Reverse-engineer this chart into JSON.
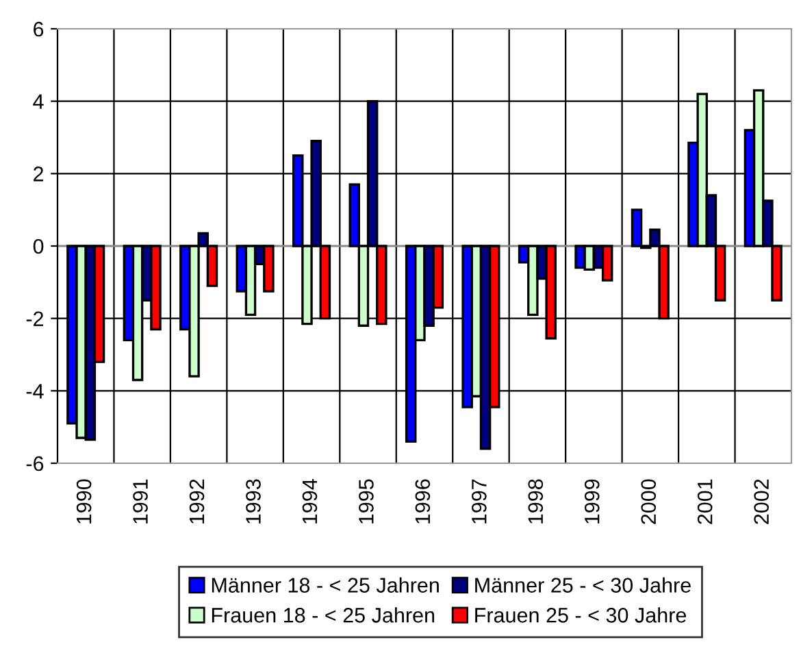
{
  "chart_data": {
    "type": "bar",
    "categories": [
      "1990",
      "1991",
      "1992",
      "1993",
      "1994",
      "1995",
      "1996",
      "1997",
      "1998",
      "1999",
      "2000",
      "2001",
      "2002"
    ],
    "series": [
      {
        "name": "Männer 18 - < 25 Jahren",
        "color": "#0000ff",
        "values": [
          -4.9,
          -2.6,
          -2.3,
          -1.25,
          2.5,
          1.7,
          -5.4,
          -4.45,
          -0.45,
          -0.6,
          1.0,
          2.85,
          3.2
        ]
      },
      {
        "name": "Frauen 18 - < 25 Jahren",
        "color": "#ccffcc",
        "values": [
          -5.3,
          -3.7,
          -3.6,
          -1.9,
          -2.15,
          -2.2,
          -2.6,
          -4.15,
          -1.9,
          -0.65,
          -0.05,
          4.2,
          4.3
        ]
      },
      {
        "name": "Männer 25 - < 30 Jahre",
        "color": "#000080",
        "values": [
          -5.35,
          -1.5,
          0.35,
          -0.5,
          2.9,
          4.0,
          -2.2,
          -5.6,
          -0.9,
          -0.6,
          0.45,
          1.4,
          1.25
        ]
      },
      {
        "name": "Frauen 25 - < 30 Jahre",
        "color": "#ff0000",
        "values": [
          -3.2,
          -2.3,
          -1.1,
          -1.25,
          -2.0,
          -2.15,
          -1.7,
          -4.45,
          -2.55,
          -0.95,
          -2.0,
          -1.5,
          -1.5
        ]
      }
    ],
    "ylim": [
      -6,
      6
    ],
    "yticks": [
      -6,
      -4,
      -2,
      0,
      2,
      4,
      6
    ],
    "grid": true,
    "legend": "bottom"
  }
}
